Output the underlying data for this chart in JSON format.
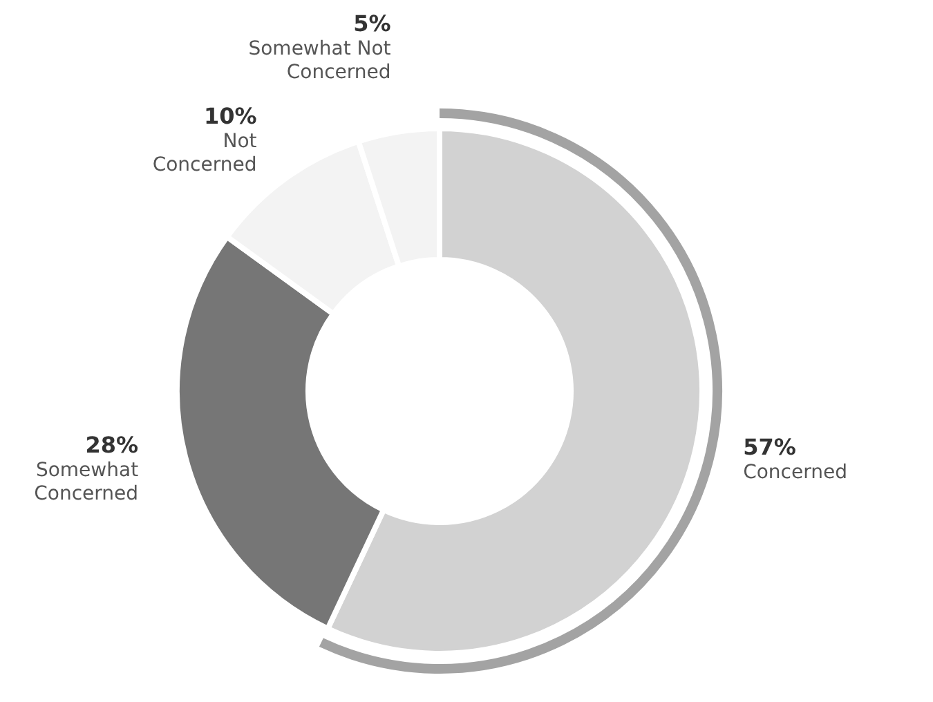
{
  "chart_data": {
    "type": "donut",
    "categories": [
      "Concerned",
      "Somewhat Concerned",
      "Not Concerned",
      "Somewhat Not Concerned"
    ],
    "values": [
      57,
      28,
      10,
      5
    ],
    "colors": [
      "#d2d2d2",
      "#767676",
      "#f3f3f3",
      "#f3f3f3"
    ],
    "value_labels": [
      "57%",
      "28%",
      "10%",
      "5%"
    ],
    "data_labels": true,
    "legend": false
  }
}
